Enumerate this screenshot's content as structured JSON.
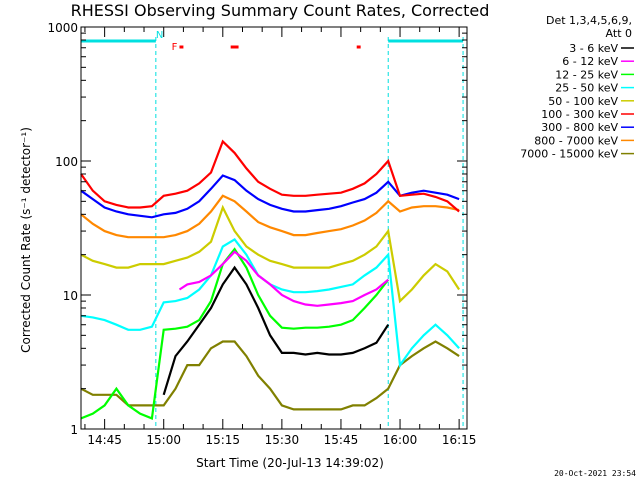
{
  "chart_data": {
    "type": "line",
    "title": "RHESSI Observing Summary Count Rates, Corrected",
    "xlabel": "Start Time (20-Jul-13 14:39:02)",
    "ylabel": "Corrected Count Rate (s⁻¹ detector⁻¹)",
    "xscale": "time",
    "yscale": "log",
    "xlim": [
      "14:39",
      "16:17"
    ],
    "ylim": [
      1,
      1000
    ],
    "x_ticks": [
      "14:45",
      "15:00",
      "15:15",
      "15:30",
      "15:45",
      "16:00",
      "16:15"
    ],
    "y_ticks": [
      "1",
      "10",
      "100",
      "1000"
    ],
    "legend": {
      "placement": "right, outside plot",
      "header": [
        "Det 1,3,4,5,6,9,",
        "Att 0"
      ]
    },
    "timestamp": "20-Oct-2021 23:54",
    "flags": [
      {
        "label": "N",
        "x": "14:58",
        "color": "#00e0e0"
      },
      {
        "label": "F",
        "x": "15:02",
        "color": "#ff0000"
      }
    ],
    "flare_bars": [
      [
        "15:04",
        "15:05"
      ],
      [
        "15:17",
        "15:19"
      ],
      [
        "15:49",
        "15:50"
      ]
    ],
    "night_bars": [
      [
        "14:39",
        "14:58"
      ],
      [
        "15:57",
        "16:16"
      ]
    ],
    "night_boundaries": [
      "14:58",
      "15:57",
      "16:16"
    ],
    "series": [
      {
        "name": "3 - 6 keV",
        "color": "#000000",
        "x": [
          "15:00",
          "15:03",
          "15:06",
          "15:09",
          "15:12",
          "15:15",
          "15:18",
          "15:21",
          "15:24",
          "15:27",
          "15:30",
          "15:33",
          "15:36",
          "15:39",
          "15:42",
          "15:45",
          "15:48",
          "15:51",
          "15:54",
          "15:57"
        ],
        "values": [
          1.8,
          3.5,
          4.5,
          6,
          8,
          12,
          16,
          12,
          8,
          5,
          3.7,
          3.7,
          3.6,
          3.7,
          3.6,
          3.6,
          3.7,
          4,
          4.4,
          6
        ]
      },
      {
        "name": "6 - 12 keV",
        "color": "#ff00ff",
        "x": [
          "15:04",
          "15:06",
          "15:09",
          "15:12",
          "15:15",
          "15:18",
          "15:21",
          "15:24",
          "15:27",
          "15:30",
          "15:33",
          "15:36",
          "15:39",
          "15:42",
          "15:45",
          "15:48",
          "15:51",
          "15:54",
          "15:57"
        ],
        "values": [
          11,
          12,
          12.5,
          14,
          17,
          21,
          18,
          14,
          12,
          10,
          9,
          8.5,
          8.3,
          8.5,
          8.7,
          9,
          10,
          11,
          13
        ]
      },
      {
        "name": "12 - 25 keV",
        "color": "#00ff00",
        "x": [
          "14:39",
          "14:42",
          "14:45",
          "14:48",
          "14:51",
          "14:54",
          "14:57",
          "15:00",
          "15:03",
          "15:06",
          "15:09",
          "15:12",
          "15:15",
          "15:18",
          "15:21",
          "15:24",
          "15:27",
          "15:30",
          "15:33",
          "15:36",
          "15:39",
          "15:42",
          "15:45",
          "15:48",
          "15:51",
          "15:54",
          "15:57"
        ],
        "values": [
          1.2,
          1.3,
          1.5,
          2,
          1.5,
          1.3,
          1.2,
          5.5,
          5.6,
          5.8,
          6.5,
          9,
          17,
          22,
          16,
          10,
          7,
          5.7,
          5.6,
          5.7,
          5.7,
          5.8,
          6,
          6.5,
          8,
          10,
          13
        ]
      },
      {
        "name": "25 - 50 keV",
        "color": "#00ffff",
        "x": [
          "14:39",
          "14:42",
          "14:45",
          "14:48",
          "14:51",
          "14:54",
          "14:57",
          "15:00",
          "15:03",
          "15:06",
          "15:09",
          "15:12",
          "15:15",
          "15:18",
          "15:21",
          "15:24",
          "15:27",
          "15:30",
          "15:33",
          "15:36",
          "15:39",
          "15:42",
          "15:45",
          "15:48",
          "15:51",
          "15:54",
          "15:57",
          "16:00",
          "16:03",
          "16:06",
          "16:09",
          "16:12",
          "16:15"
        ],
        "values": [
          7,
          6.8,
          6.5,
          6,
          5.5,
          5.5,
          5.8,
          8.8,
          9,
          9.5,
          11,
          14,
          23,
          26,
          20,
          14,
          12,
          11,
          10.5,
          10.5,
          10.7,
          11,
          11.5,
          12,
          14,
          16,
          20,
          3,
          4,
          5,
          6,
          5,
          4
        ]
      },
      {
        "name": "50 - 100 keV",
        "color": "#cccc00",
        "x": [
          "14:39",
          "14:42",
          "14:45",
          "14:48",
          "14:51",
          "14:54",
          "14:57",
          "15:00",
          "15:03",
          "15:06",
          "15:09",
          "15:12",
          "15:15",
          "15:18",
          "15:21",
          "15:24",
          "15:27",
          "15:30",
          "15:33",
          "15:36",
          "15:39",
          "15:42",
          "15:45",
          "15:48",
          "15:51",
          "15:54",
          "15:57",
          "16:00",
          "16:03",
          "16:06",
          "16:09",
          "16:12",
          "16:15"
        ],
        "values": [
          20,
          18,
          17,
          16,
          16,
          17,
          17,
          17,
          18,
          19,
          21,
          25,
          45,
          30,
          23,
          20,
          18,
          17,
          16,
          16,
          16,
          16,
          17,
          18,
          20,
          23,
          30,
          9,
          11,
          14,
          17,
          15,
          11
        ]
      },
      {
        "name": "100 - 300 keV",
        "color": "#ff0000",
        "x": [
          "14:39",
          "14:42",
          "14:45",
          "14:48",
          "14:51",
          "14:54",
          "14:57",
          "15:00",
          "15:03",
          "15:06",
          "15:09",
          "15:12",
          "15:15",
          "15:18",
          "15:21",
          "15:24",
          "15:27",
          "15:30",
          "15:33",
          "15:36",
          "15:39",
          "15:42",
          "15:45",
          "15:48",
          "15:51",
          "15:54",
          "15:57",
          "16:00",
          "16:03",
          "16:06",
          "16:09",
          "16:12",
          "16:15"
        ],
        "values": [
          80,
          60,
          50,
          47,
          45,
          45,
          46,
          55,
          57,
          60,
          68,
          82,
          140,
          115,
          88,
          70,
          62,
          56,
          55,
          55,
          56,
          57,
          58,
          62,
          68,
          80,
          100,
          55,
          56,
          57,
          54,
          50,
          42
        ]
      },
      {
        "name": "300 - 800 keV",
        "color": "#0000ff",
        "x": [
          "14:39",
          "14:42",
          "14:45",
          "14:48",
          "14:51",
          "14:54",
          "14:57",
          "15:00",
          "15:03",
          "15:06",
          "15:09",
          "15:12",
          "15:15",
          "15:18",
          "15:21",
          "15:24",
          "15:27",
          "15:30",
          "15:33",
          "15:36",
          "15:39",
          "15:42",
          "15:45",
          "15:48",
          "15:51",
          "15:54",
          "15:57",
          "16:00",
          "16:03",
          "16:06",
          "16:09",
          "16:12",
          "16:15"
        ],
        "values": [
          60,
          52,
          45,
          42,
          40,
          39,
          38,
          40,
          41,
          44,
          50,
          62,
          78,
          72,
          60,
          52,
          47,
          44,
          42,
          42,
          43,
          44,
          46,
          49,
          52,
          58,
          70,
          55,
          58,
          60,
          58,
          56,
          52
        ]
      },
      {
        "name": "800 - 7000 keV",
        "color": "#ff8800",
        "x": [
          "14:39",
          "14:42",
          "14:45",
          "14:48",
          "14:51",
          "14:54",
          "14:57",
          "15:00",
          "15:03",
          "15:06",
          "15:09",
          "15:12",
          "15:15",
          "15:18",
          "15:21",
          "15:24",
          "15:27",
          "15:30",
          "15:33",
          "15:36",
          "15:39",
          "15:42",
          "15:45",
          "15:48",
          "15:51",
          "15:54",
          "15:57",
          "16:00",
          "16:03",
          "16:06",
          "16:09",
          "16:12",
          "16:15"
        ],
        "values": [
          40,
          34,
          30,
          28,
          27,
          27,
          27,
          27,
          28,
          30,
          34,
          42,
          55,
          50,
          42,
          35,
          32,
          30,
          28,
          28,
          29,
          30,
          31,
          33,
          36,
          41,
          50,
          42,
          45,
          46,
          46,
          45,
          43
        ]
      },
      {
        "name": "7000 - 15000 keV",
        "color": "#808000",
        "x": [
          "14:39",
          "14:42",
          "14:45",
          "14:48",
          "14:51",
          "14:54",
          "14:57",
          "15:00",
          "15:03",
          "15:06",
          "15:09",
          "15:12",
          "15:15",
          "15:18",
          "15:21",
          "15:24",
          "15:27",
          "15:30",
          "15:33",
          "15:36",
          "15:39",
          "15:42",
          "15:45",
          "15:48",
          "15:51",
          "15:54",
          "15:57",
          "16:00",
          "16:03",
          "16:06",
          "16:09",
          "16:12",
          "16:15"
        ],
        "values": [
          2,
          1.8,
          1.8,
          1.8,
          1.5,
          1.5,
          1.5,
          1.5,
          2,
          3,
          3,
          4,
          4.5,
          4.5,
          3.5,
          2.5,
          2,
          1.5,
          1.4,
          1.4,
          1.4,
          1.4,
          1.4,
          1.5,
          1.5,
          1.7,
          2,
          3,
          3.5,
          4,
          4.5,
          4,
          3.5
        ]
      }
    ]
  }
}
